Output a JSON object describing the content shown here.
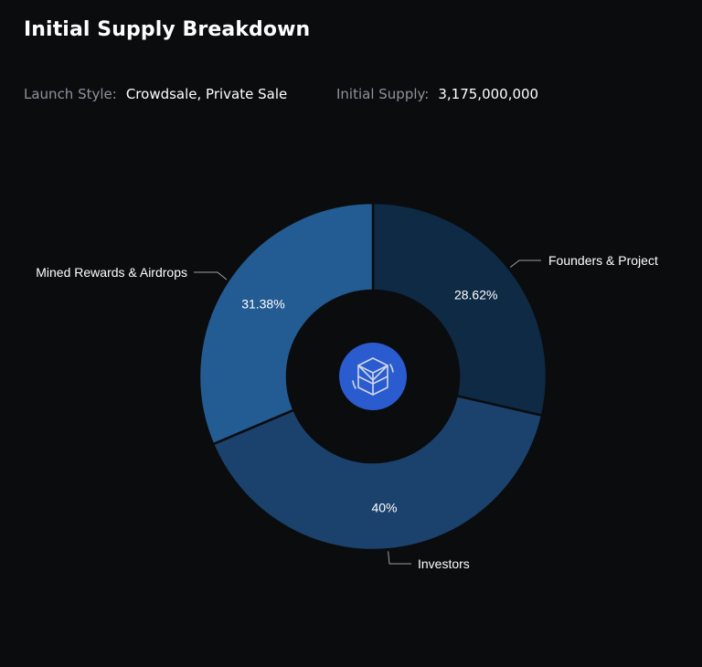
{
  "header": {
    "title": "Initial Supply Breakdown",
    "launch_style_label": "Launch Style:",
    "launch_style_value": "Crowdsale, Private Sale",
    "initial_supply_label": "Initial Supply:",
    "initial_supply_value": "3,175,000,000"
  },
  "center_icon": "fantom-logo-icon",
  "colors": {
    "background": "#0b0c0e",
    "logo_circle": "#2a5ccf"
  },
  "chart_data": {
    "type": "pie",
    "variant": "donut",
    "categories": [
      "Founders & Project",
      "Investors",
      "Mined Rewards & Airdrops"
    ],
    "values": [
      28.62,
      40,
      31.38
    ],
    "labels": [
      "28.62%",
      "40%",
      "31.38%"
    ],
    "colors": [
      "#0e2a44",
      "#1a426c",
      "#235c92"
    ],
    "legend": "callout labels outside slices"
  }
}
